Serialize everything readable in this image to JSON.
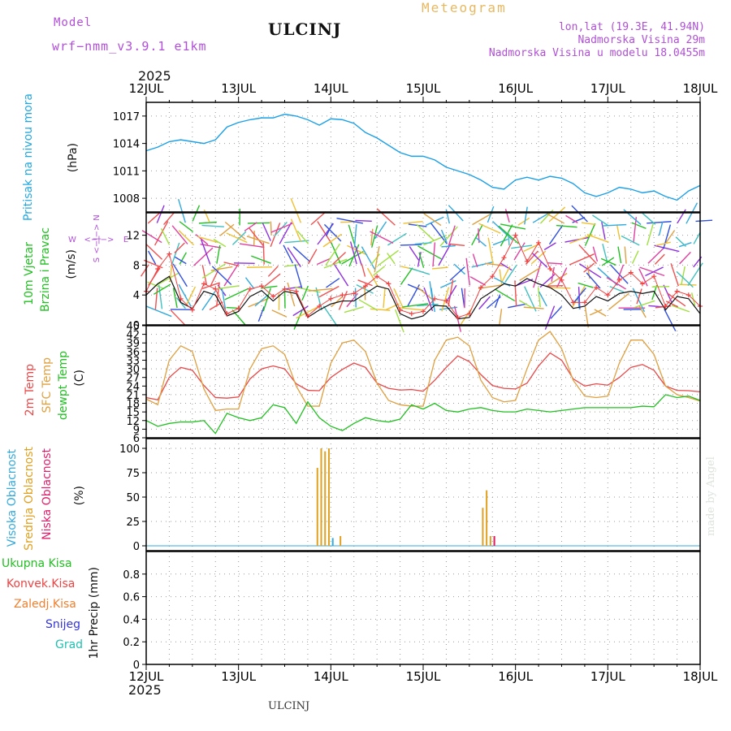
{
  "header": {
    "model_label": "Model",
    "model_name": "wrf−nmm_v3.9.1 e1km",
    "station": "ULCINJ",
    "meteogram": "Meteogram",
    "lonlat": "lon,lat (19.3E, 41.94N)",
    "elevation": "Nadmorska Visina 29m",
    "model_elevation": "Nadmorska Visina u modelu 18.0455m",
    "year": "2025"
  },
  "footer": {
    "station": "ULCINJ",
    "made_by": "made by Angel"
  },
  "colors": {
    "pressure": "#1aa0e8",
    "wind_speed": "#111111",
    "gust": "#f04040",
    "temp2m": "#e84848",
    "sfc_temp": "#e0a040",
    "dewpt": "#22c022",
    "cloud_high": "#33aadd",
    "cloud_mid": "#e0a020",
    "cloud_low": "#e0206a"
  },
  "panel_labels": {
    "pressure": [
      "Pritisak na nivou mora",
      "(hPa)"
    ],
    "wind": [
      "10m Vjetar",
      "Brzina i Pravac",
      "(m/s)"
    ],
    "compass": {
      "n": "N",
      "s": "S",
      "w": "W",
      "e": "E",
      "arrow": "<−|−>"
    },
    "temp": [
      "2m Temp",
      "SFC Temp",
      "dewpt Temp",
      "(C)"
    ],
    "cloud": [
      "Visoka Oblacnost",
      "Srednja Oblacnost",
      "Niska Oblacnost",
      "(%)"
    ],
    "precip_axis": "1hr Precip (mm)",
    "precip_legend": [
      "Ukupna Kisa",
      "Konvek.Kisa",
      "Zaledj.Kisa",
      "Snijeg",
      "Grad"
    ]
  },
  "chart_data": [
    {
      "type": "line",
      "name": "pressure",
      "x_labels": [
        "12JUL",
        "13JUL",
        "14JUL",
        "15JUL",
        "16JUL",
        "17JUL",
        "18JUL"
      ],
      "x_hours": [
        0,
        3,
        6,
        9,
        12,
        15,
        18,
        21,
        24,
        27,
        30,
        33,
        36,
        39,
        42,
        45,
        48,
        51,
        54,
        57,
        60,
        63,
        66,
        69,
        72,
        75,
        78,
        81,
        84,
        87,
        90,
        93,
        96,
        99,
        102,
        105,
        108,
        111,
        114,
        117,
        120,
        123,
        126,
        129,
        132,
        135,
        138,
        141,
        144
      ],
      "values": [
        1013.2,
        1013.6,
        1014.2,
        1014.4,
        1014.2,
        1014.0,
        1014.4,
        1015.8,
        1016.3,
        1016.6,
        1016.8,
        1016.8,
        1017.2,
        1017.0,
        1016.6,
        1016.0,
        1016.7,
        1016.6,
        1016.2,
        1015.2,
        1014.6,
        1013.8,
        1013.0,
        1012.6,
        1012.6,
        1012.2,
        1011.4,
        1011.0,
        1010.6,
        1010.0,
        1009.2,
        1009.0,
        1010.0,
        1010.3,
        1010.0,
        1010.4,
        1010.2,
        1009.6,
        1008.6,
        1008.2,
        1008.6,
        1009.2,
        1009.0,
        1008.6,
        1008.8,
        1008.2,
        1007.8,
        1008.8,
        1009.4
      ],
      "ylim": [
        1006.5,
        1018.5
      ],
      "y_ticks": [
        1008,
        1011,
        1014,
        1017
      ],
      "grid": true
    },
    {
      "type": "line",
      "name": "wind",
      "x_hours": [
        0,
        3,
        6,
        9,
        12,
        15,
        18,
        21,
        24,
        27,
        30,
        33,
        36,
        39,
        42,
        45,
        48,
        51,
        54,
        57,
        60,
        63,
        66,
        69,
        72,
        75,
        78,
        81,
        84,
        87,
        90,
        93,
        96,
        99,
        102,
        105,
        108,
        111,
        114,
        117,
        120,
        123,
        126,
        129,
        132,
        135,
        138,
        141,
        144
      ],
      "speed": [
        4.0,
        5.5,
        6.5,
        3.0,
        2.2,
        4.5,
        4.0,
        1.2,
        1.8,
        3.8,
        4.6,
        3.2,
        4.5,
        4.2,
        1.0,
        2.0,
        2.8,
        3.2,
        3.2,
        4.2,
        5.2,
        4.8,
        1.5,
        0.8,
        1.2,
        2.6,
        2.5,
        0.8,
        1.0,
        3.5,
        4.5,
        5.5,
        5.2,
        6.2,
        5.5,
        5.0,
        4.0,
        2.2,
        2.5,
        3.8,
        3.2,
        4.2,
        4.5,
        4.2,
        4.5,
        2.0,
        3.8,
        3.5,
        1.5
      ],
      "gust": [
        4.5,
        7.5,
        9.5,
        3.5,
        2.0,
        5.5,
        4.8,
        1.5,
        2.2,
        4.8,
        5.2,
        3.8,
        4.8,
        4.5,
        1.2,
        2.5,
        3.5,
        4.0,
        4.2,
        5.2,
        6.5,
        5.5,
        2.0,
        1.5,
        1.8,
        3.5,
        3.2,
        1.0,
        1.5,
        5.0,
        6.5,
        9.0,
        12.0,
        8.5,
        11.0,
        7.5,
        6.0,
        3.0,
        3.0,
        5.0,
        4.0,
        6.0,
        7.0,
        5.5,
        6.5,
        2.5,
        4.5,
        4.0,
        2.5
      ],
      "ylim": [
        0,
        15
      ],
      "y_ticks": [
        0,
        4,
        8,
        12
      ],
      "grid": true
    },
    {
      "type": "line",
      "name": "temperature",
      "x_hours": [
        0,
        3,
        6,
        9,
        12,
        15,
        18,
        21,
        24,
        27,
        30,
        33,
        36,
        39,
        42,
        45,
        48,
        51,
        54,
        57,
        60,
        63,
        66,
        69,
        72,
        75,
        78,
        81,
        84,
        87,
        90,
        93,
        96,
        99,
        102,
        105,
        108,
        111,
        114,
        117,
        120,
        123,
        126,
        129,
        132,
        135,
        138,
        141,
        144
      ],
      "series": [
        {
          "name": "2m Temp",
          "values": [
            20.0,
            19.2,
            27.0,
            30.5,
            29.5,
            24.2,
            20.0,
            19.8,
            20.2,
            26.5,
            30.0,
            31.0,
            30.0,
            24.8,
            22.5,
            22.4,
            27.0,
            29.8,
            32.0,
            30.5,
            25.0,
            23.2,
            22.6,
            22.8,
            22.2,
            26.0,
            30.5,
            34.5,
            32.5,
            28.0,
            24.2,
            23.2,
            23.0,
            25.0,
            31.0,
            35.5,
            33.0,
            26.5,
            24.0,
            24.8,
            24.3,
            27.0,
            30.5,
            31.5,
            29.5,
            24.0,
            22.5,
            22.4,
            22.0
          ]
        },
        {
          "name": "SFC Temp",
          "values": [
            19.5,
            17.5,
            33.0,
            38.0,
            36.0,
            23.0,
            15.5,
            16.0,
            16.0,
            30.0,
            37.0,
            38.0,
            35.0,
            24.0,
            17.0,
            17.0,
            32.0,
            39.0,
            40.0,
            36.0,
            25.0,
            19.0,
            17.5,
            17.0,
            17.0,
            33.0,
            40.0,
            41.0,
            38.0,
            26.0,
            20.0,
            18.5,
            19.0,
            30.0,
            40.0,
            43.0,
            37.0,
            26.0,
            20.5,
            20.0,
            20.5,
            32.0,
            40.0,
            40.0,
            35.0,
            24.0,
            21.0,
            20.0,
            18.8
          ]
        },
        {
          "name": "dewpt Temp",
          "values": [
            12.0,
            10.0,
            11.0,
            11.5,
            11.5,
            12.0,
            7.5,
            14.5,
            13.0,
            12.0,
            13.0,
            17.5,
            16.5,
            11.0,
            18.5,
            13.0,
            10.0,
            8.5,
            11.0,
            13.0,
            12.0,
            11.5,
            12.5,
            17.5,
            16.0,
            18.0,
            15.5,
            15.0,
            16.0,
            16.5,
            15.5,
            15.0,
            15.0,
            16.0,
            15.5,
            15.0,
            15.5,
            16.0,
            16.5,
            16.5,
            16.5,
            16.5,
            16.5,
            17.0,
            16.8,
            21.0,
            20.0,
            20.5,
            19.0
          ]
        }
      ],
      "ylim": [
        6,
        45
      ],
      "y_ticks": [
        6,
        9,
        12,
        15,
        18,
        21,
        24,
        27,
        30,
        33,
        36,
        39,
        42,
        45
      ],
      "grid": true
    },
    {
      "type": "bar",
      "name": "cloud",
      "ylim": [
        -5,
        110
      ],
      "y_ticks": [
        0,
        25,
        50,
        75,
        100
      ],
      "mid_bars": [
        {
          "x": 44.5,
          "value": 80
        },
        {
          "x": 45.5,
          "value": 100
        },
        {
          "x": 46.5,
          "value": 97
        },
        {
          "x": 47.5,
          "value": 100
        },
        {
          "x": 50.5,
          "value": 10
        },
        {
          "x": 87.5,
          "value": 39
        },
        {
          "x": 88.5,
          "value": 57
        },
        {
          "x": 89.5,
          "value": 10
        },
        {
          "x": 90.5,
          "value": 10
        }
      ],
      "high_bars": [
        {
          "x": 48.5,
          "value": 8
        }
      ],
      "low_bars": [
        {
          "x": 90.5,
          "value": 10
        }
      ],
      "grid": true
    },
    {
      "type": "bar",
      "name": "precipitation",
      "ylim": [
        0,
        1
      ],
      "y_ticks": [
        0,
        0.2,
        0.4,
        0.6,
        0.8
      ],
      "values": [],
      "grid": true
    }
  ]
}
